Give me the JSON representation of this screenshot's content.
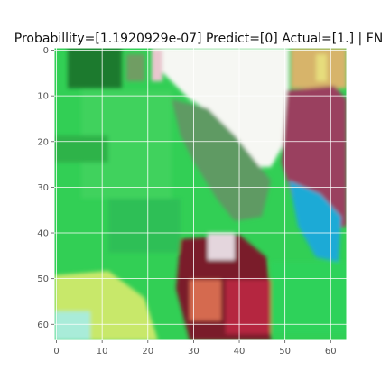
{
  "chart_data": {
    "type": "heatmap",
    "image_kind": "rgb-image",
    "title": "Probabillity=[1.1920929e-07] Predict=[0] Actual=[1.] | FN",
    "xlabel": "",
    "ylabel": "",
    "x_ticks": [
      0,
      10,
      20,
      30,
      40,
      50,
      60
    ],
    "y_ticks": [
      0,
      10,
      20,
      30,
      40,
      50,
      60
    ],
    "xlim": [
      -0.5,
      63.5
    ],
    "ylim": [
      63.5,
      -0.5
    ],
    "image_resolution": [
      64,
      64
    ],
    "grid": true,
    "grid_color": "#ffffff",
    "tick_color": "#555555",
    "regions": [
      {
        "name": "sky",
        "color": "#f6f7f3"
      },
      {
        "name": "foliage",
        "color": "#32cf55"
      },
      {
        "name": "dark-foliage",
        "color": "#1f7a2e"
      },
      {
        "name": "figure-red",
        "color": "#9a3f5e"
      },
      {
        "name": "figure-blue",
        "color": "#1eaad6"
      },
      {
        "name": "tan",
        "color": "#d7b46a"
      },
      {
        "name": "maroon",
        "color": "#7a1f2b"
      },
      {
        "name": "yellow-green",
        "color": "#c8e86a"
      }
    ]
  }
}
